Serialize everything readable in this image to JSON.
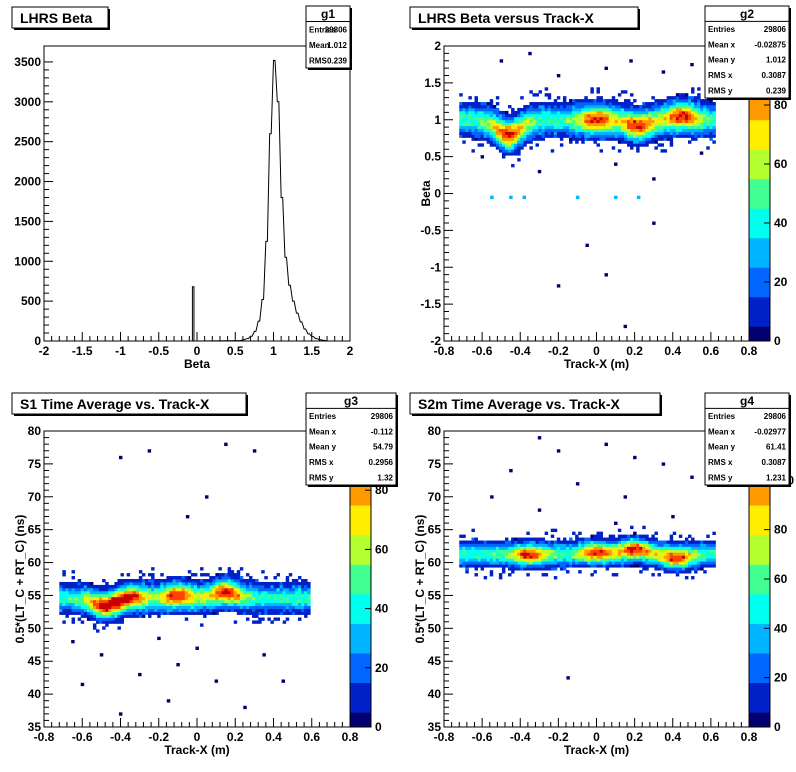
{
  "colors": {
    "frame": "#000000",
    "palette": [
      "#00006e",
      "#0020c8",
      "#0066ff",
      "#00b4ff",
      "#00ffee",
      "#40ff90",
      "#b4ff30",
      "#ffee00",
      "#ff9900",
      "#ff4400",
      "#c80000"
    ]
  },
  "chart_data": [
    {
      "id": "g1",
      "type": "histogram",
      "title": "LHRS Beta",
      "xlabel": "Beta",
      "ylabel": "",
      "xlim": [
        -2,
        2
      ],
      "ylim": [
        0,
        3700
      ],
      "xticks": [
        -2,
        -1.5,
        -1,
        -0.5,
        0,
        0.5,
        1,
        1.5,
        2
      ],
      "yticks": [
        0,
        500,
        1000,
        1500,
        2000,
        2500,
        3000,
        3500
      ],
      "stats": {
        "name": "g1",
        "rows": [
          [
            "Entries",
            "29806"
          ],
          [
            "Mean",
            "1.012"
          ],
          [
            "RMS",
            "0.239"
          ]
        ]
      },
      "bins": [
        [
          -0.08,
          0
        ],
        [
          -0.06,
          680
        ],
        [
          -0.04,
          0
        ],
        [
          0.55,
          5
        ],
        [
          0.6,
          15
        ],
        [
          0.65,
          30
        ],
        [
          0.7,
          60
        ],
        [
          0.75,
          120
        ],
        [
          0.8,
          250
        ],
        [
          0.85,
          520
        ],
        [
          0.9,
          1250
        ],
        [
          0.95,
          2600
        ],
        [
          1.0,
          3520
        ],
        [
          1.05,
          3000
        ],
        [
          1.1,
          1800
        ],
        [
          1.15,
          1050
        ],
        [
          1.2,
          700
        ],
        [
          1.25,
          500
        ],
        [
          1.3,
          350
        ],
        [
          1.35,
          240
        ],
        [
          1.4,
          150
        ],
        [
          1.45,
          90
        ],
        [
          1.5,
          55
        ],
        [
          1.55,
          30
        ],
        [
          1.6,
          15
        ],
        [
          1.65,
          8
        ],
        [
          1.7,
          0
        ]
      ]
    },
    {
      "id": "g2",
      "type": "heatmap",
      "title": "LHRS Beta versus Track-X",
      "xlabel": "Track-X (m)",
      "ylabel": "Beta",
      "xlim": [
        -0.8,
        0.8
      ],
      "ylim": [
        -2,
        2
      ],
      "xticks": [
        -0.8,
        -0.6,
        -0.4,
        -0.2,
        0,
        0.2,
        0.4,
        0.6,
        0.8
      ],
      "yticks": [
        -2,
        -1.5,
        -1,
        -0.5,
        0,
        0.5,
        1,
        1.5,
        2
      ],
      "zticks": [
        20,
        40,
        60,
        80
      ],
      "zmax": 100,
      "stats": {
        "name": "g2",
        "rows": [
          [
            "Entries",
            "29806"
          ],
          [
            "Mean x",
            "-0.02875"
          ],
          [
            "Mean y",
            "1.012"
          ],
          [
            "RMS x",
            "0.3087"
          ],
          [
            "RMS y",
            "0.239"
          ]
        ]
      },
      "band": {
        "x": [
          -0.72,
          0.62
        ],
        "center": 1.0,
        "width": 0.18,
        "peaks": [
          [
            -0.46,
            0.8
          ],
          [
            0.0,
            1.0
          ],
          [
            0.22,
            0.92
          ],
          [
            0.45,
            1.05
          ]
        ]
      },
      "scatter": [
        [
          -0.5,
          1.8
        ],
        [
          -0.35,
          1.9
        ],
        [
          -0.2,
          1.6
        ],
        [
          0.05,
          1.7
        ],
        [
          0.18,
          1.8
        ],
        [
          0.35,
          1.65
        ],
        [
          0.5,
          1.75
        ],
        [
          -0.6,
          0.5
        ],
        [
          -0.3,
          0.3
        ],
        [
          0.1,
          0.4
        ],
        [
          0.3,
          0.2
        ],
        [
          0.55,
          0.55
        ],
        [
          -0.45,
          -0.05
        ],
        [
          -0.38,
          -0.05
        ],
        [
          -0.1,
          -0.05
        ],
        [
          0.1,
          -0.05
        ],
        [
          0.22,
          -0.05
        ],
        [
          0.05,
          -1.1
        ],
        [
          -0.2,
          -1.25
        ],
        [
          0.15,
          -1.8
        ],
        [
          -0.55,
          -0.05
        ],
        [
          0.3,
          -0.4
        ],
        [
          -0.05,
          -0.7
        ]
      ]
    },
    {
      "id": "g3",
      "type": "heatmap",
      "title": "S1 Time Average vs. Track-X",
      "xlabel": "Track-X (m)",
      "ylabel": "0.5*(LT_C + RT_C) (ns)",
      "xlim": [
        -0.8,
        0.8
      ],
      "ylim": [
        35,
        80
      ],
      "xticks": [
        -0.8,
        -0.6,
        -0.4,
        -0.2,
        0,
        0.2,
        0.4,
        0.6,
        0.8
      ],
      "yticks": [
        35,
        40,
        45,
        50,
        55,
        60,
        65,
        70,
        75,
        80
      ],
      "zticks": [
        20,
        40,
        60,
        80
      ],
      "zmax": 100,
      "stats": {
        "name": "g3",
        "rows": [
          [
            "Entries",
            "29806"
          ],
          [
            "Mean x",
            "-0.112"
          ],
          [
            "Mean y",
            "54.79"
          ],
          [
            "RMS x",
            "0.2956"
          ],
          [
            "RMS y",
            "1.32"
          ]
        ]
      },
      "band": {
        "x": [
          -0.72,
          0.6
        ],
        "center": 54.6,
        "width": 1.8,
        "peaks": [
          [
            -0.48,
            53.5
          ],
          [
            -0.35,
            54.8
          ],
          [
            -0.1,
            55.0
          ],
          [
            0.15,
            55.5
          ]
        ]
      },
      "scatter": [
        [
          -0.6,
          41.5
        ],
        [
          -0.4,
          37.0
        ],
        [
          -0.3,
          43.0
        ],
        [
          -0.1,
          44.5
        ],
        [
          0.1,
          42.0
        ],
        [
          -0.25,
          77.0
        ],
        [
          0.15,
          78.0
        ],
        [
          0.3,
          77.0
        ],
        [
          -0.4,
          76.0
        ],
        [
          -0.05,
          67.0
        ],
        [
          0.05,
          70.0
        ],
        [
          -0.5,
          46.0
        ],
        [
          0.0,
          47.0
        ],
        [
          0.35,
          46.0
        ],
        [
          -0.2,
          48.5
        ],
        [
          0.45,
          42.0
        ],
        [
          -0.65,
          48.0
        ],
        [
          0.25,
          38.0
        ],
        [
          -0.15,
          39.0
        ]
      ]
    },
    {
      "id": "g4",
      "type": "heatmap",
      "title": "S2m Time Average vs. Track-X",
      "xlabel": "Track-X (m)",
      "ylabel": "0.5*(LT_C + RT_C) (ns)",
      "xlim": [
        -0.8,
        0.8
      ],
      "ylim": [
        35,
        80
      ],
      "xticks": [
        -0.8,
        -0.6,
        -0.4,
        -0.2,
        0,
        0.2,
        0.4,
        0.6,
        0.8
      ],
      "yticks": [
        35,
        40,
        45,
        50,
        55,
        60,
        65,
        70,
        75,
        80
      ],
      "zticks": [
        20,
        40,
        60,
        80,
        100
      ],
      "zmax": 120,
      "stats": {
        "name": "g4",
        "rows": [
          [
            "Entries",
            "29806"
          ],
          [
            "Mean x",
            "-0.02977"
          ],
          [
            "Mean y",
            "61.41"
          ],
          [
            "RMS x",
            "0.3087"
          ],
          [
            "RMS y",
            "1.231"
          ]
        ]
      },
      "band": {
        "x": [
          -0.72,
          0.62
        ],
        "center": 61.3,
        "width": 1.5,
        "peaks": [
          [
            -0.35,
            61.2
          ],
          [
            0.0,
            61.6
          ],
          [
            0.2,
            62.0
          ],
          [
            0.42,
            60.8
          ]
        ]
      },
      "scatter": [
        [
          -0.3,
          79.0
        ],
        [
          -0.2,
          77.0
        ],
        [
          0.05,
          78.0
        ],
        [
          0.2,
          76.0
        ],
        [
          -0.45,
          74.0
        ],
        [
          0.35,
          75.0
        ],
        [
          -0.1,
          72.0
        ],
        [
          0.15,
          70.0
        ],
        [
          -0.3,
          68.0
        ],
        [
          0.4,
          67.0
        ],
        [
          -0.15,
          42.5
        ],
        [
          0.5,
          73.0
        ],
        [
          -0.55,
          70.0
        ],
        [
          0.1,
          66.0
        ]
      ]
    }
  ]
}
